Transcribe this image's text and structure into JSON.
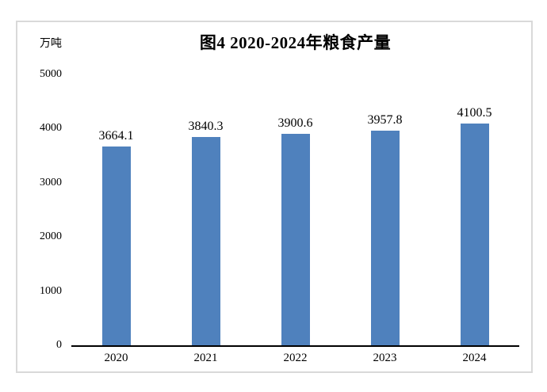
{
  "chart_data": {
    "type": "bar",
    "title": "图4 2020-2024年粮食产量",
    "ylabel": "万吨",
    "xlabel": "",
    "categories": [
      "2020",
      "2021",
      "2022",
      "2023",
      "2024"
    ],
    "values": [
      3664.1,
      3840.3,
      3900.6,
      3957.8,
      4100.5
    ],
    "data_labels": [
      "3664.1",
      "3840.3",
      "3900.6",
      "3957.8",
      "4100.5"
    ],
    "yticks": [
      0,
      1000,
      2000,
      3000,
      4000,
      5000
    ],
    "ylim": [
      0,
      5000
    ],
    "grid": false,
    "legend_position": "none",
    "bar_color": "#4F81BD",
    "axis_color": "#000000",
    "frame_border_color": "#D9D9D9",
    "background_color": "#FFFFFF"
  }
}
